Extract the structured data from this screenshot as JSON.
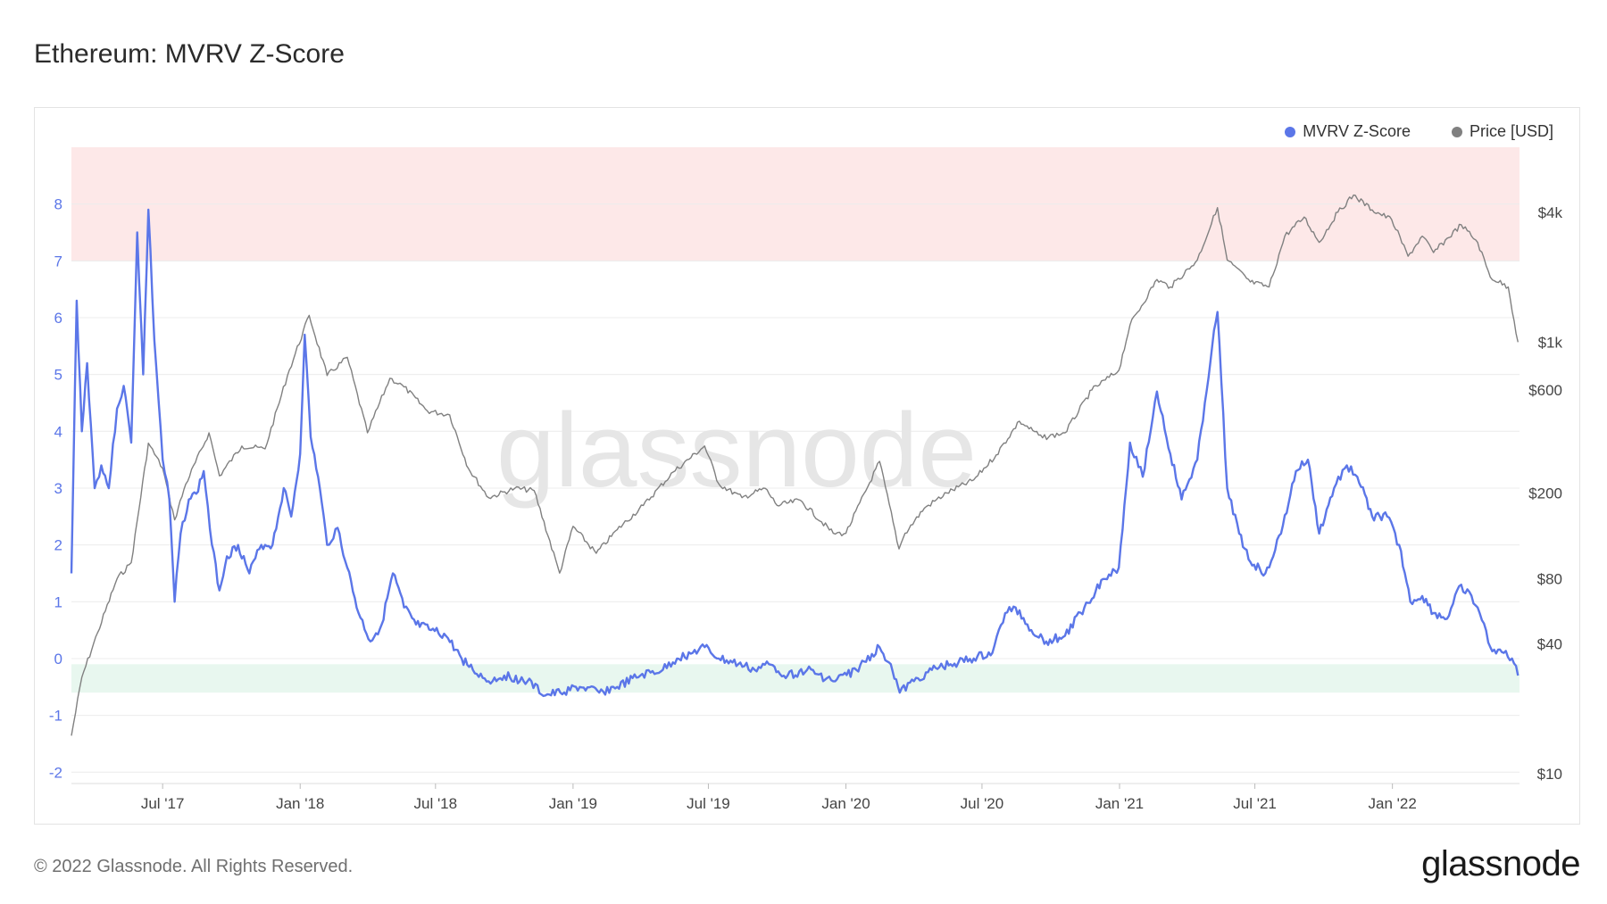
{
  "title": "Ethereum: MVRV Z-Score",
  "footer": "© 2022 Glassnode. All Rights Reserved.",
  "brand": "glassnode",
  "watermark": "glassnode",
  "colors": {
    "zscore": "#5b76e8",
    "price": "#808080",
    "red_zone": "#fde8e8",
    "green_zone": "#e8f7ef"
  },
  "chart_data": {
    "type": "line",
    "title": "Ethereum: MVRV Z-Score",
    "legend_position": "top-right",
    "grid": true,
    "x_ticks": [
      "Jul '17",
      "Jan '18",
      "Jul '18",
      "Jan '19",
      "Jul '19",
      "Jan '20",
      "Jul '20",
      "Jan '21",
      "Jul '21",
      "Jan '22"
    ],
    "x_tick_dates": [
      "2017-07-01",
      "2018-01-01",
      "2018-07-01",
      "2019-01-01",
      "2019-07-01",
      "2020-01-01",
      "2020-07-01",
      "2021-01-01",
      "2021-07-01",
      "2022-01-01"
    ],
    "x_range": [
      "2017-03-01",
      "2022-06-20"
    ],
    "y_left": {
      "ticks": [
        "8",
        "7",
        "6",
        "5",
        "4",
        "3",
        "2",
        "1",
        "0",
        "-1",
        "-2"
      ],
      "range": [
        -2.2,
        9
      ]
    },
    "y_right": {
      "scale": "log",
      "ticks": [
        "$4k",
        "$1k",
        "$600",
        "$200",
        "$80",
        "$40",
        "$10"
      ],
      "tick_values": [
        4000,
        1000,
        600,
        200,
        80,
        40,
        10
      ],
      "range": [
        9,
        8000
      ]
    },
    "zones": [
      {
        "name": "top",
        "from": 7,
        "to": 9
      },
      {
        "name": "bottom",
        "from": -0.6,
        "to": -0.1
      }
    ],
    "series": [
      {
        "name": "MVRV Z-Score",
        "axis": "left",
        "points": [
          [
            "2017-03-01",
            1.5
          ],
          [
            "2017-03-08",
            6.3
          ],
          [
            "2017-03-15",
            4.0
          ],
          [
            "2017-03-22",
            5.2
          ],
          [
            "2017-04-01",
            3.0
          ],
          [
            "2017-04-10",
            3.4
          ],
          [
            "2017-04-20",
            3.0
          ],
          [
            "2017-05-01",
            4.4
          ],
          [
            "2017-05-10",
            4.8
          ],
          [
            "2017-05-20",
            3.8
          ],
          [
            "2017-05-28",
            7.5
          ],
          [
            "2017-06-05",
            5.0
          ],
          [
            "2017-06-12",
            7.9
          ],
          [
            "2017-06-20",
            5.6
          ],
          [
            "2017-07-01",
            3.5
          ],
          [
            "2017-07-10",
            2.8
          ],
          [
            "2017-07-17",
            1.0
          ],
          [
            "2017-07-25",
            2.2
          ],
          [
            "2017-08-05",
            2.8
          ],
          [
            "2017-08-15",
            2.9
          ],
          [
            "2017-08-25",
            3.3
          ],
          [
            "2017-09-05",
            2.0
          ],
          [
            "2017-09-15",
            1.2
          ],
          [
            "2017-09-25",
            1.8
          ],
          [
            "2017-10-10",
            2.0
          ],
          [
            "2017-10-25",
            1.5
          ],
          [
            "2017-11-10",
            2.0
          ],
          [
            "2017-11-25",
            2.0
          ],
          [
            "2017-12-10",
            3.0
          ],
          [
            "2017-12-20",
            2.5
          ],
          [
            "2018-01-01",
            3.6
          ],
          [
            "2018-01-07",
            5.7
          ],
          [
            "2018-01-15",
            3.9
          ],
          [
            "2018-01-25",
            3.2
          ],
          [
            "2018-02-06",
            2.0
          ],
          [
            "2018-02-20",
            2.3
          ],
          [
            "2018-03-05",
            1.6
          ],
          [
            "2018-03-20",
            0.8
          ],
          [
            "2018-04-05",
            0.3
          ],
          [
            "2018-04-20",
            0.6
          ],
          [
            "2018-05-05",
            1.5
          ],
          [
            "2018-05-20",
            0.9
          ],
          [
            "2018-06-05",
            0.6
          ],
          [
            "2018-06-25",
            0.5
          ],
          [
            "2018-07-15",
            0.4
          ],
          [
            "2018-08-05",
            0.0
          ],
          [
            "2018-08-20",
            -0.2
          ],
          [
            "2018-09-10",
            -0.4
          ],
          [
            "2018-10-01",
            -0.3
          ],
          [
            "2018-11-01",
            -0.4
          ],
          [
            "2018-11-25",
            -0.65
          ],
          [
            "2018-12-15",
            -0.6
          ],
          [
            "2019-01-10",
            -0.5
          ],
          [
            "2019-02-05",
            -0.6
          ],
          [
            "2019-03-01",
            -0.5
          ],
          [
            "2019-04-01",
            -0.3
          ],
          [
            "2019-05-01",
            -0.2
          ],
          [
            "2019-05-20",
            0.0
          ],
          [
            "2019-06-10",
            0.1
          ],
          [
            "2019-06-26",
            0.2
          ],
          [
            "2019-07-15",
            0.0
          ],
          [
            "2019-08-10",
            -0.1
          ],
          [
            "2019-09-01",
            -0.2
          ],
          [
            "2019-09-20",
            -0.1
          ],
          [
            "2019-10-15",
            -0.3
          ],
          [
            "2019-11-10",
            -0.2
          ],
          [
            "2019-12-15",
            -0.4
          ],
          [
            "2020-01-15",
            -0.2
          ],
          [
            "2020-02-15",
            0.2
          ],
          [
            "2020-03-01",
            -0.1
          ],
          [
            "2020-03-13",
            -0.6
          ],
          [
            "2020-04-01",
            -0.4
          ],
          [
            "2020-04-25",
            -0.2
          ],
          [
            "2020-05-20",
            -0.1
          ],
          [
            "2020-06-20",
            0.0
          ],
          [
            "2020-07-15",
            0.1
          ],
          [
            "2020-08-01",
            0.8
          ],
          [
            "2020-08-15",
            0.9
          ],
          [
            "2020-09-05",
            0.5
          ],
          [
            "2020-09-25",
            0.3
          ],
          [
            "2020-10-20",
            0.4
          ],
          [
            "2020-11-15",
            0.9
          ],
          [
            "2020-12-10",
            1.4
          ],
          [
            "2020-12-31",
            1.6
          ],
          [
            "2021-01-15",
            3.8
          ],
          [
            "2021-02-01",
            3.2
          ],
          [
            "2021-02-20",
            4.7
          ],
          [
            "2021-03-10",
            3.6
          ],
          [
            "2021-03-25",
            2.8
          ],
          [
            "2021-04-15",
            3.5
          ],
          [
            "2021-05-05",
            5.5
          ],
          [
            "2021-05-12",
            6.1
          ],
          [
            "2021-05-25",
            3.0
          ],
          [
            "2021-06-10",
            2.2
          ],
          [
            "2021-06-25",
            1.7
          ],
          [
            "2021-07-15",
            1.5
          ],
          [
            "2021-08-05",
            2.2
          ],
          [
            "2021-08-25",
            3.3
          ],
          [
            "2021-09-10",
            3.5
          ],
          [
            "2021-09-25",
            2.2
          ],
          [
            "2021-10-15",
            3.0
          ],
          [
            "2021-11-01",
            3.4
          ],
          [
            "2021-11-15",
            3.2
          ],
          [
            "2021-12-05",
            2.5
          ],
          [
            "2021-12-25",
            2.5
          ],
          [
            "2022-01-10",
            2.0
          ],
          [
            "2022-01-25",
            1.0
          ],
          [
            "2022-02-10",
            1.1
          ],
          [
            "2022-02-25",
            0.8
          ],
          [
            "2022-03-15",
            0.7
          ],
          [
            "2022-04-03",
            1.3
          ],
          [
            "2022-04-25",
            0.9
          ],
          [
            "2022-05-12",
            0.2
          ],
          [
            "2022-05-30",
            0.1
          ],
          [
            "2022-06-10",
            0.0
          ],
          [
            "2022-06-18",
            -0.3
          ]
        ]
      },
      {
        "name": "Price [USD]",
        "axis": "right",
        "points": [
          [
            "2017-03-01",
            15
          ],
          [
            "2017-03-15",
            28
          ],
          [
            "2017-04-05",
            45
          ],
          [
            "2017-05-01",
            80
          ],
          [
            "2017-05-20",
            95
          ],
          [
            "2017-06-12",
            340
          ],
          [
            "2017-07-01",
            260
          ],
          [
            "2017-07-17",
            150
          ],
          [
            "2017-08-01",
            220
          ],
          [
            "2017-09-01",
            380
          ],
          [
            "2017-09-15",
            240
          ],
          [
            "2017-10-15",
            330
          ],
          [
            "2017-11-15",
            320
          ],
          [
            "2017-12-15",
            700
          ],
          [
            "2018-01-13",
            1330
          ],
          [
            "2018-02-06",
            700
          ],
          [
            "2018-03-05",
            850
          ],
          [
            "2018-04-01",
            380
          ],
          [
            "2018-05-01",
            680
          ],
          [
            "2018-05-20",
            620
          ],
          [
            "2018-06-20",
            480
          ],
          [
            "2018-07-20",
            460
          ],
          [
            "2018-08-14",
            260
          ],
          [
            "2018-09-10",
            190
          ],
          [
            "2018-10-15",
            210
          ],
          [
            "2018-11-10",
            205
          ],
          [
            "2018-12-14",
            85
          ],
          [
            "2019-01-01",
            140
          ],
          [
            "2019-02-01",
            105
          ],
          [
            "2019-03-01",
            135
          ],
          [
            "2019-04-05",
            175
          ],
          [
            "2019-05-15",
            250
          ],
          [
            "2019-06-26",
            330
          ],
          [
            "2019-07-15",
            220
          ],
          [
            "2019-08-15",
            190
          ],
          [
            "2019-09-15",
            210
          ],
          [
            "2019-10-01",
            175
          ],
          [
            "2019-11-01",
            185
          ],
          [
            "2019-12-15",
            130
          ],
          [
            "2020-01-01",
            130
          ],
          [
            "2020-02-15",
            280
          ],
          [
            "2020-03-12",
            110
          ],
          [
            "2020-03-20",
            130
          ],
          [
            "2020-04-15",
            170
          ],
          [
            "2020-05-15",
            200
          ],
          [
            "2020-06-20",
            230
          ],
          [
            "2020-07-20",
            300
          ],
          [
            "2020-08-20",
            430
          ],
          [
            "2020-09-20",
            360
          ],
          [
            "2020-10-20",
            380
          ],
          [
            "2020-11-25",
            600
          ],
          [
            "2020-12-31",
            740
          ],
          [
            "2021-01-15",
            1200
          ],
          [
            "2021-02-20",
            1950
          ],
          [
            "2021-03-10",
            1800
          ],
          [
            "2021-04-15",
            2400
          ],
          [
            "2021-05-12",
            4200
          ],
          [
            "2021-05-25",
            2400
          ],
          [
            "2021-06-25",
            1900
          ],
          [
            "2021-07-20",
            1800
          ],
          [
            "2021-08-10",
            3100
          ],
          [
            "2021-09-05",
            3800
          ],
          [
            "2021-09-25",
            2900
          ],
          [
            "2021-10-20",
            4000
          ],
          [
            "2021-11-10",
            4800
          ],
          [
            "2021-12-05",
            4100
          ],
          [
            "2021-12-31",
            3700
          ],
          [
            "2022-01-22",
            2500
          ],
          [
            "2022-02-10",
            3100
          ],
          [
            "2022-02-25",
            2600
          ],
          [
            "2022-04-03",
            3500
          ],
          [
            "2022-04-25",
            2900
          ],
          [
            "2022-05-12",
            2000
          ],
          [
            "2022-06-05",
            1800
          ],
          [
            "2022-06-18",
            1000
          ]
        ]
      }
    ]
  },
  "legend": [
    {
      "label": "MVRV Z-Score",
      "color": "#5b76e8"
    },
    {
      "label": "Price [USD]",
      "color": "#808080"
    }
  ]
}
